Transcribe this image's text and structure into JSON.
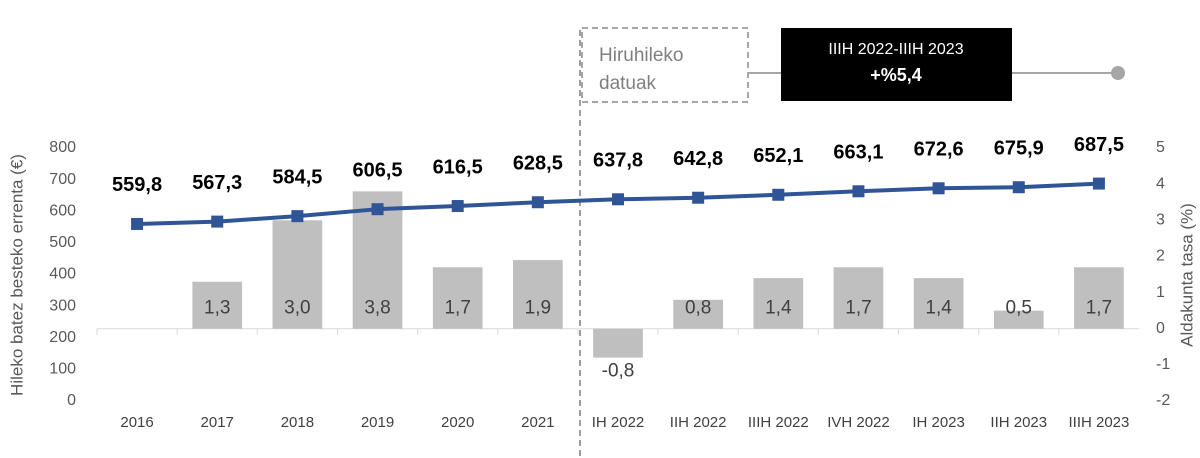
{
  "chart_data": {
    "type": "combo",
    "categories": [
      "2016",
      "2017",
      "2018",
      "2019",
      "2020",
      "2021",
      "IH 2022",
      "IIH 2022",
      "IIIH 2022",
      "IVH 2022",
      "IH 2023",
      "IIH 2023",
      "IIIH 2023"
    ],
    "series": [
      {
        "type": "bar",
        "axis": "y2",
        "color": "#bfbfbf",
        "values": [
          null,
          1.3,
          3.0,
          3.8,
          1.7,
          1.9,
          -0.8,
          0.8,
          1.4,
          1.7,
          1.4,
          0.5,
          1.7
        ],
        "value_labels": [
          null,
          "1,3",
          "3,0",
          "3,8",
          "1,7",
          "1,9",
          "-0,8",
          "0,8",
          "1,4",
          "1,7",
          "1,4",
          "0,5",
          "1,7"
        ]
      },
      {
        "type": "line",
        "axis": "y",
        "color": "#2f5597",
        "values": [
          559.8,
          567.3,
          584.5,
          606.5,
          616.5,
          628.5,
          637.8,
          642.8,
          652.1,
          663.1,
          672.6,
          675.9,
          687.5
        ],
        "value_labels": [
          "559,8",
          "567,3",
          "584,5",
          "606,5",
          "616,5",
          "628,5",
          "637,8",
          "642,8",
          "652,1",
          "663,1",
          "672,6",
          "675,9",
          "687,5"
        ]
      }
    ],
    "ylim": [
      0,
      800
    ],
    "yticks": [
      0,
      100,
      200,
      300,
      400,
      500,
      600,
      700,
      800
    ],
    "y2lim": [
      -2,
      5
    ],
    "y2ticks": [
      -2,
      -1,
      0,
      1,
      2,
      3,
      4,
      5
    ],
    "ylabel": "Hileko batez besteko errenta (€)",
    "y2label": "Aldakunta tasa (%)",
    "annotations": [
      {
        "lines": [
          "Hiruhileko",
          "datuak"
        ]
      },
      {
        "lines": [
          "IIIH 2022-IIIH 2023",
          "+%5,4"
        ]
      }
    ]
  }
}
